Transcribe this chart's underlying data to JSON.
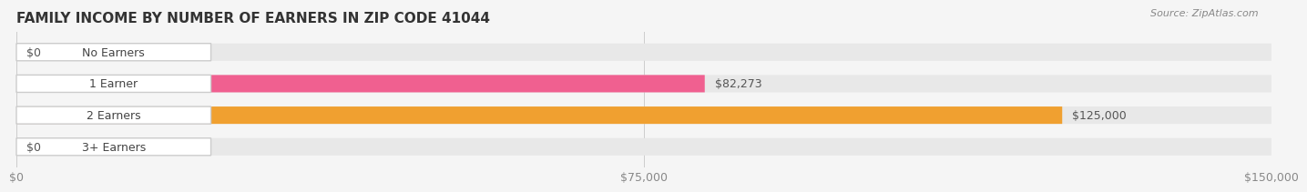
{
  "title": "FAMILY INCOME BY NUMBER OF EARNERS IN ZIP CODE 41044",
  "source": "Source: ZipAtlas.com",
  "categories": [
    "No Earners",
    "1 Earner",
    "2 Earners",
    "3+ Earners"
  ],
  "values": [
    0,
    82273,
    125000,
    0
  ],
  "bar_colors": [
    "#a8a8d8",
    "#f06090",
    "#f0a030",
    "#f09090"
  ],
  "label_colors": [
    "#888888",
    "#555555",
    "#555555",
    "#888888"
  ],
  "background_color": "#f5f5f5",
  "bar_bg_color": "#e8e8e8",
  "xlim": [
    0,
    150000
  ],
  "xticks": [
    0,
    75000,
    150000
  ],
  "xtick_labels": [
    "$0",
    "$75,000",
    "$150,000"
  ],
  "value_labels": [
    "$0",
    "$82,273",
    "$125,000",
    "$0"
  ],
  "bar_height": 0.55,
  "title_fontsize": 11,
  "tick_fontsize": 9,
  "label_fontsize": 9,
  "value_fontsize": 9
}
